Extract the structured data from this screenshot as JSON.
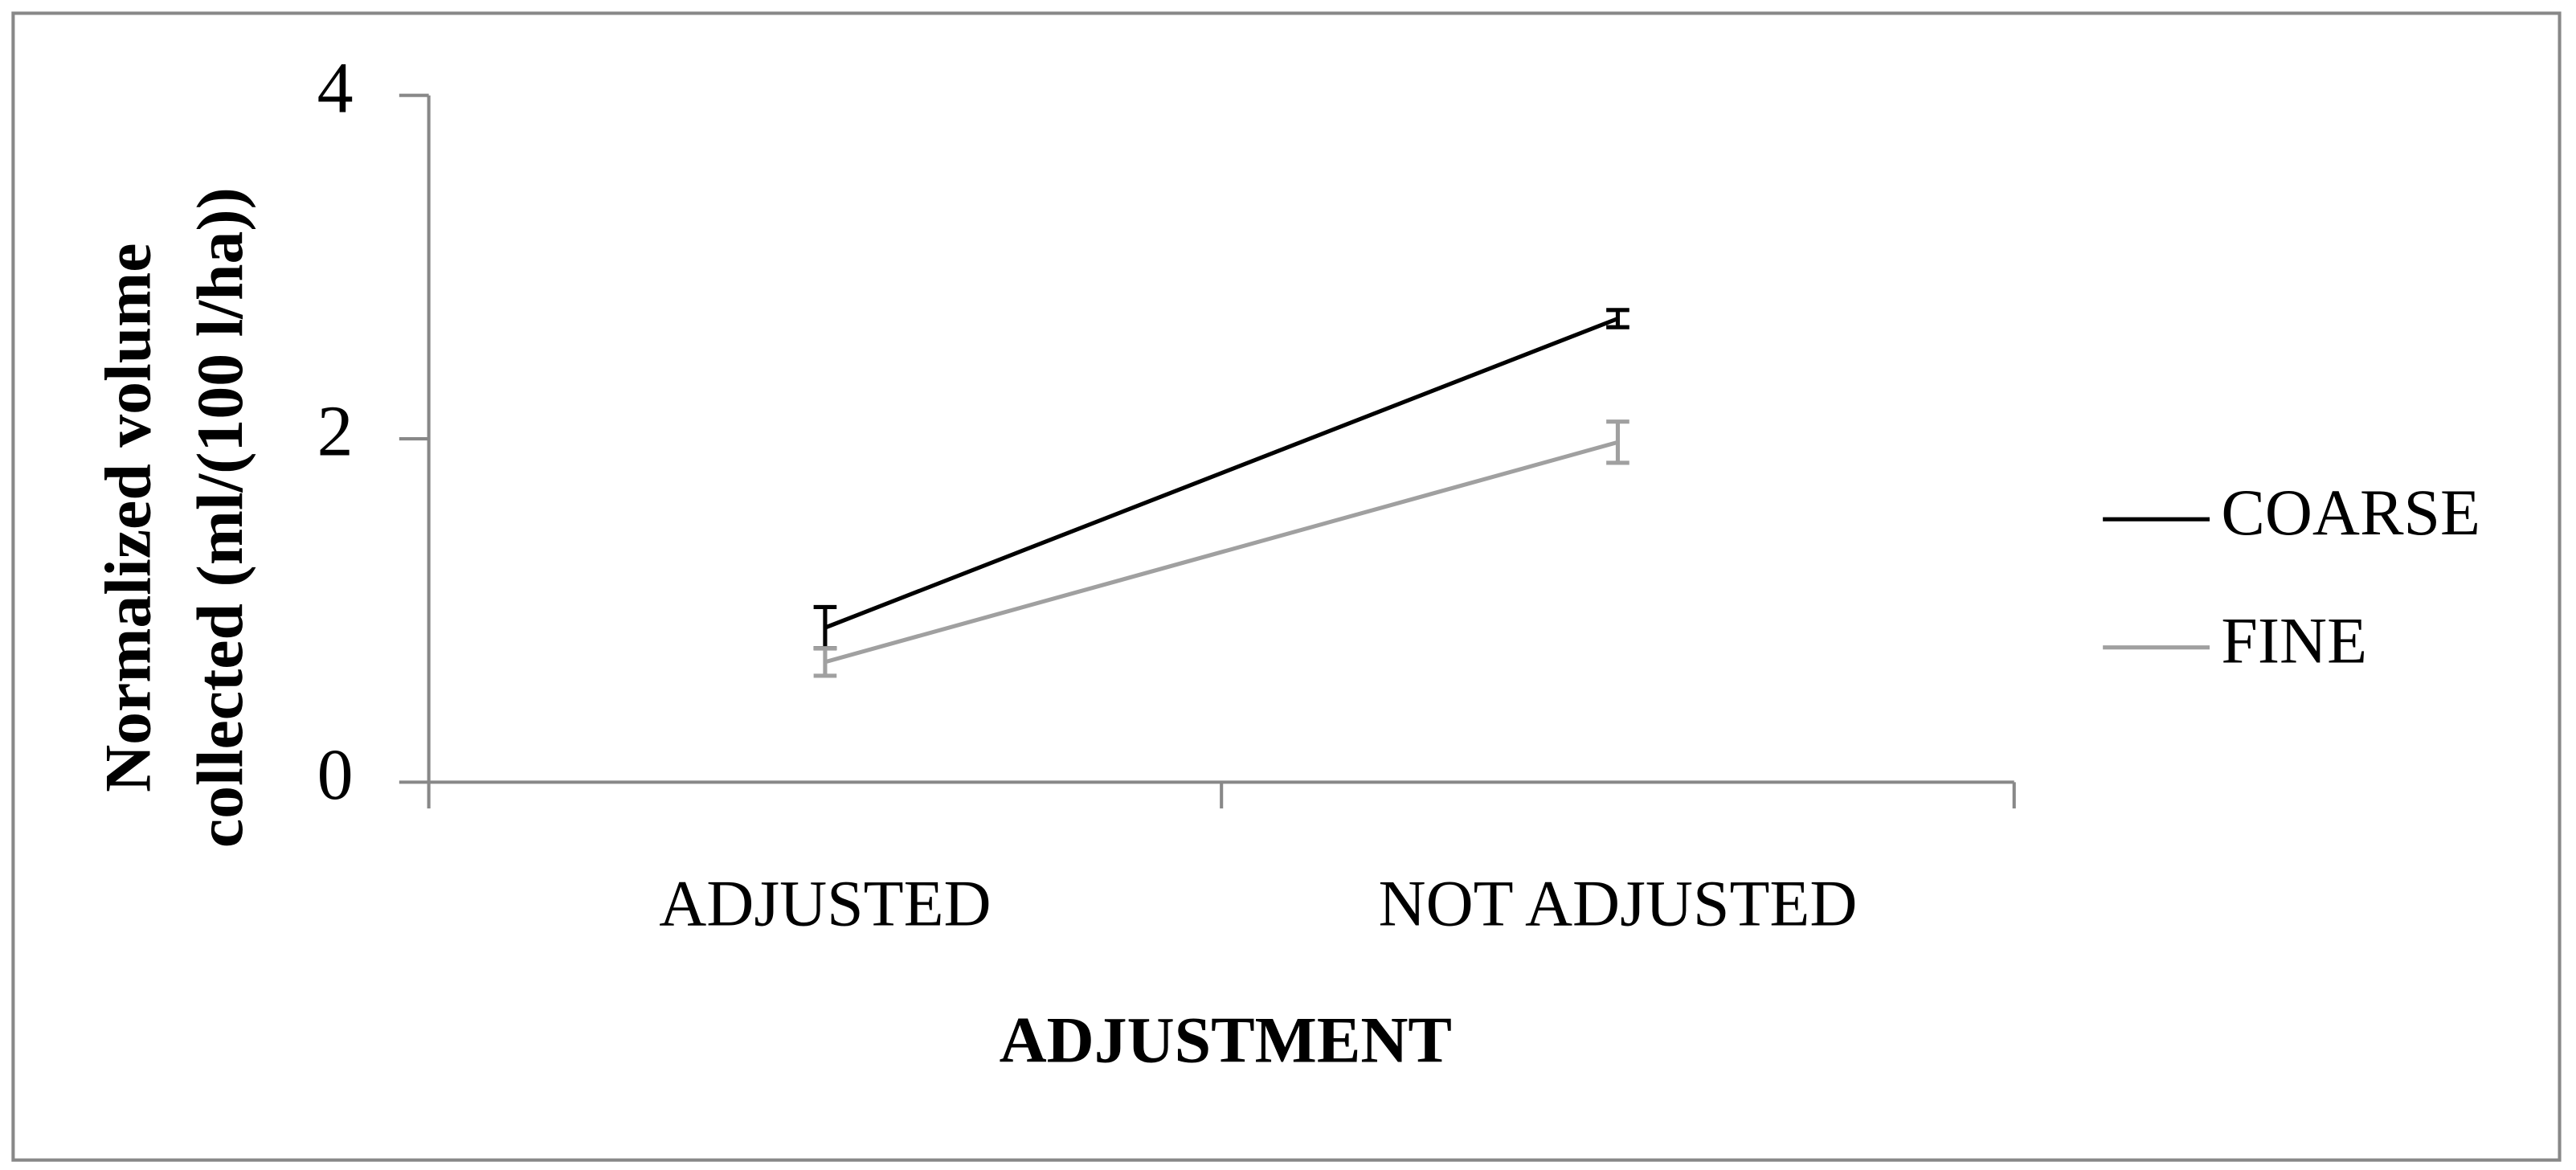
{
  "chart_data": {
    "type": "line",
    "y_label": [
      "Normalized volume",
      "collected (ml/(100 l/ha))"
    ],
    "x_label": "ADJUSTMENT",
    "categories": [
      "ADJUSTED",
      "NOT ADJUSTED"
    ],
    "series": [
      {
        "name": "COARSE",
        "color": "#000000",
        "values": [
          0.9,
          2.7
        ],
        "errors": [
          0.12,
          0.05
        ]
      },
      {
        "name": "FINE",
        "color": "#a0a0a0",
        "values": [
          0.7,
          1.98
        ],
        "errors": [
          0.08,
          0.12
        ]
      }
    ],
    "ylim": [
      0,
      4
    ],
    "yticks": [
      0,
      2,
      4
    ],
    "legend": "right"
  }
}
